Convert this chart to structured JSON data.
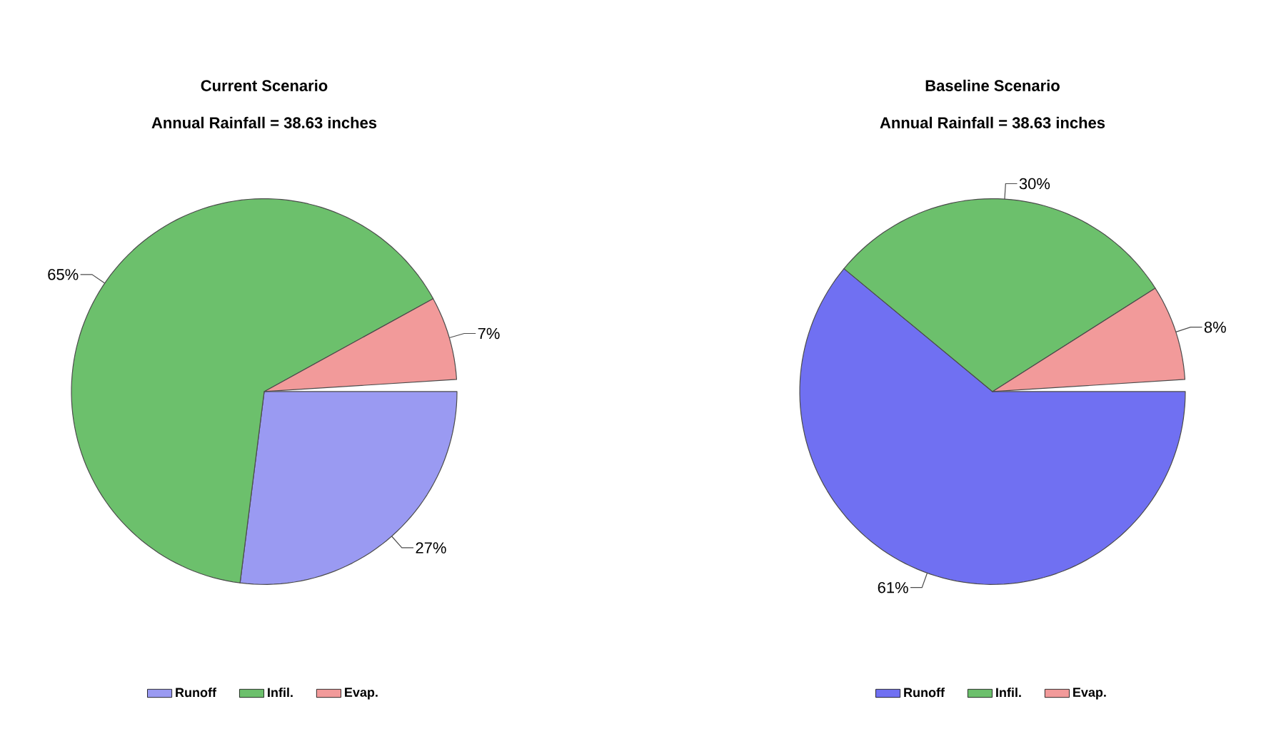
{
  "chart_data": [
    {
      "type": "pie",
      "title": "Current Scenario",
      "subtitle": "Annual Rainfall = 38.63 inches",
      "categories": [
        "Runoff",
        "Infil.",
        "Evap."
      ],
      "values": [
        27,
        65,
        7
      ],
      "value_labels": [
        "27%",
        "65%",
        "7%"
      ],
      "colors": [
        "#9a9af2",
        "#6cc06c",
        "#f29a9a"
      ],
      "legend": "bottom"
    },
    {
      "type": "pie",
      "title": "Baseline Scenario",
      "subtitle": "Annual Rainfall = 38.63 inches",
      "categories": [
        "Runoff",
        "Infil.",
        "Evap."
      ],
      "values": [
        61,
        30,
        8
      ],
      "value_labels": [
        "61%",
        "30%",
        "8%"
      ],
      "colors": [
        "#7070f2",
        "#6cc06c",
        "#f29a9a"
      ],
      "legend": "bottom"
    }
  ]
}
